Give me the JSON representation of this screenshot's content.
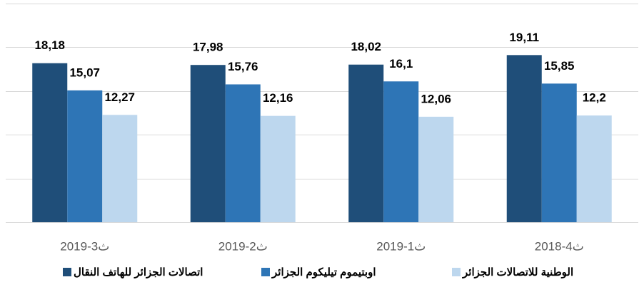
{
  "chart_data": {
    "type": "bar",
    "categories": [
      "2019-3ث",
      "2019-2ث",
      "2019-1ث",
      "2018-4ث"
    ],
    "series": [
      {
        "name": "اتصالات الجزائر للهاتف النقال",
        "color": "#1f4e79",
        "values": [
          18.18,
          17.98,
          18.02,
          19.11
        ],
        "value_labels": [
          "18,18",
          "17,98",
          "18,02",
          "19,11"
        ]
      },
      {
        "name": "اوبتيموم تيليكوم الجزائر",
        "color": "#2e75b6",
        "values": [
          15.07,
          15.76,
          16.1,
          15.85
        ],
        "value_labels": [
          "15,07",
          "15,76",
          "16,1",
          "15,85"
        ]
      },
      {
        "name": "الوطنية للاتصالات الجزائر",
        "color": "#bdd7ee",
        "values": [
          12.27,
          12.16,
          12.06,
          12.2
        ],
        "value_labels": [
          "12,27",
          "12,16",
          "12,06",
          "12,2"
        ]
      }
    ],
    "ylim": [
      0,
      25
    ],
    "yticks": [
      0,
      5,
      10,
      15,
      20,
      25
    ],
    "grid": true
  }
}
